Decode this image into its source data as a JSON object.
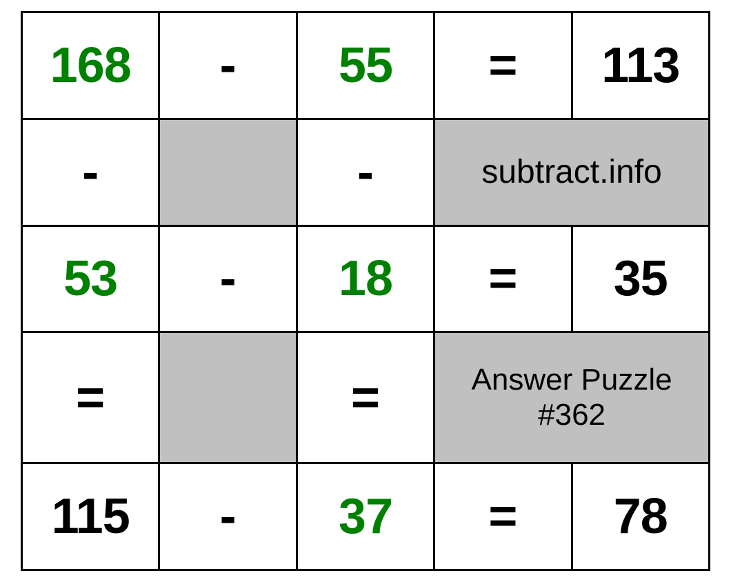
{
  "puzzle": {
    "type": "table",
    "columns": 5,
    "rows": 5,
    "border_color": "#000000",
    "border_width": 3,
    "background_color": "#ffffff",
    "grey_fill": "#c0c0c0",
    "number_fontsize": 72,
    "number_fontweight": 700,
    "label_fontsize": 48,
    "label2_fontsize": 44,
    "green": "#008000",
    "black": "#000000",
    "r1": {
      "a": "168",
      "op": "-",
      "b": "55",
      "eq": "=",
      "c": "113"
    },
    "r2": {
      "op1": "-",
      "op2": "-",
      "site": "subtract.info"
    },
    "r3": {
      "a": "53",
      "op": "-",
      "b": "18",
      "eq": "=",
      "c": "35"
    },
    "r4": {
      "eq1": "=",
      "eq2": "=",
      "answer_line1": "Answer Puzzle",
      "answer_line2": "#362"
    },
    "r5": {
      "a": "115",
      "op": "-",
      "b": "37",
      "eq": "=",
      "c": "78"
    }
  }
}
